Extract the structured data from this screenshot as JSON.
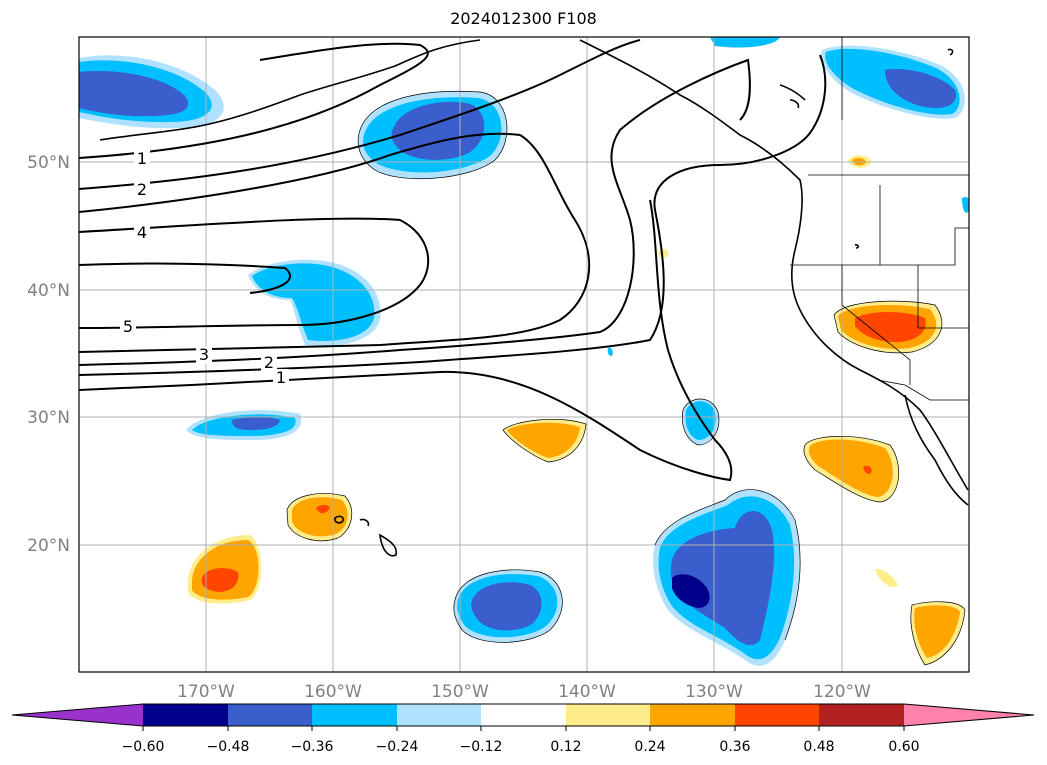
{
  "title": "2024012300 F108",
  "map": {
    "projection": "PlateCarree",
    "lon_range": [
      -180,
      -110
    ],
    "lat_range": [
      10,
      60
    ],
    "grid": true,
    "lat_labels": [
      "50°N",
      "40°N",
      "30°N",
      "20°N"
    ],
    "lon_labels": [
      "170°W",
      "160°W",
      "150°W",
      "140°W",
      "130°W",
      "120°W"
    ],
    "contour_labels": [
      "1",
      "2",
      "4",
      "5",
      "3",
      "2",
      "1"
    ]
  },
  "colorbar": {
    "labels": [
      "−0.60",
      "−0.48",
      "−0.36",
      "−0.24",
      "−0.12",
      "0.12",
      "0.24",
      "0.36",
      "0.48",
      "0.60"
    ],
    "colors": [
      "#9932cc",
      "#00008b",
      "#3a5fcd",
      "#00bfff",
      "#b0e2ff",
      "#ffffff",
      "#ffec8b",
      "#ffa500",
      "#ff4500",
      "#b22222",
      "#ff82ab"
    ],
    "extend": "both"
  }
}
